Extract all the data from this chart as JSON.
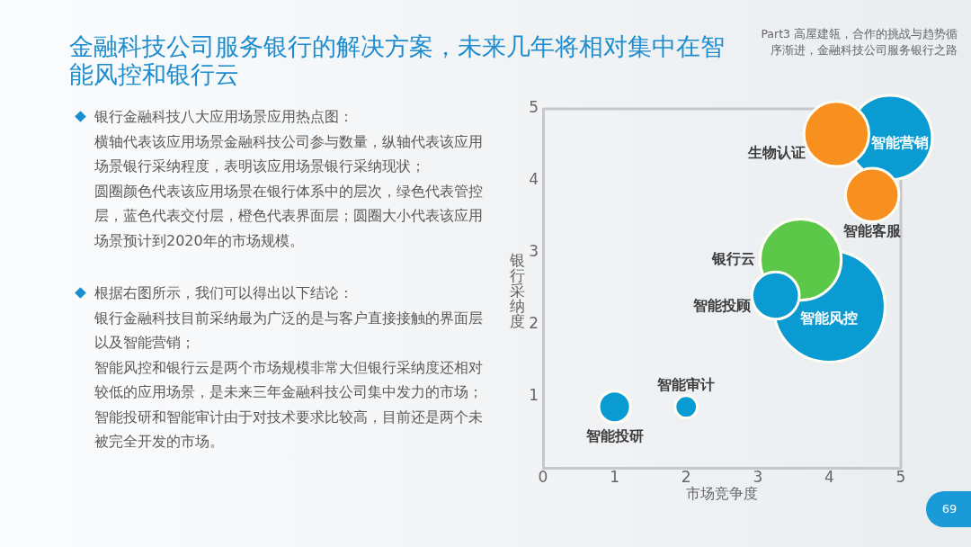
{
  "chart_data": {
    "type": "bubble",
    "title": "金融科技公司服务银行的解决方案，未来几年将相对集中在智能风控和银行云",
    "subtitle": "Part3 高屋建瓴，合作的挑战与趋势循序渐进，金融科技公司服务银行之路",
    "xlabel": "市场竞争度",
    "ylabel": "银行采纳度",
    "xlim": [
      0,
      5
    ],
    "ylim": [
      0,
      5
    ],
    "xticks": [
      0,
      1,
      2,
      3,
      4,
      5
    ],
    "yticks": [
      1,
      2,
      3,
      4,
      5
    ],
    "grid": false,
    "series": [
      {
        "name": "智能投研",
        "color": "#0b9bd3",
        "x": [
          1.0
        ],
        "values": [
          0.85
        ],
        "sizes": [
          0.08
        ]
      },
      {
        "name": "智能审计",
        "color": "#0b9bd3",
        "x": [
          2.0
        ],
        "values": [
          0.85
        ],
        "sizes": [
          0.04
        ]
      },
      {
        "name": "智能风控",
        "color": "#0b9bd3",
        "x": [
          4.0
        ],
        "values": [
          2.25
        ],
        "sizes": [
          1
        ]
      },
      {
        "name": "银行云",
        "color": "#5bc84a",
        "x": [
          3.6
        ],
        "values": [
          2.9
        ],
        "sizes": [
          0.53
        ]
      },
      {
        "name": "智能投顾",
        "color": "#0b9bd3",
        "x": [
          3.25
        ],
        "values": [
          2.4
        ],
        "sizes": [
          0.18
        ]
      },
      {
        "name": "智能营销",
        "color": "#0b9bd3",
        "x": [
          4.85
        ],
        "values": [
          4.6
        ],
        "sizes": [
          0.57
        ]
      },
      {
        "name": "生物认证",
        "color": "#f7901e",
        "x": [
          4.1
        ],
        "values": [
          4.65
        ],
        "sizes": [
          0.34
        ]
      },
      {
        "name": "智能客服",
        "color": "#f7901e",
        "x": [
          4.6
        ],
        "values": [
          3.8
        ],
        "sizes": [
          0.23
        ]
      }
    ],
    "annotations": [
      "银行金融科技八大应用场景应用热点图：",
      "横轴代表该应用场景金融科技公司参与数量，纵轴代表该应用场景银行采纳程度，表明该应用场景银行采纳现状；",
      "圆圈颜色代表该应用场景在银行体系中的层次，绿色代表管控层，蓝色代表交付层，橙色代表界面层；圆圈大小代表该应用场景预计到2020年的市场规模。",
      "根据右图所示，我们可以得出以下结论：",
      "银行金融科技目前采纳最为广泛的是与客户直接接触的界面层以及智能营销；",
      "智能风控和银行云是两个市场规模非常大但银行采纳度还相对较低的应用场景，是未来三年金融科技公司集中发力的市场；",
      "智能投研和智能审计由于对技术要求比较高，目前还是两个未被完全开发的市场。",
      "69"
    ]
  }
}
